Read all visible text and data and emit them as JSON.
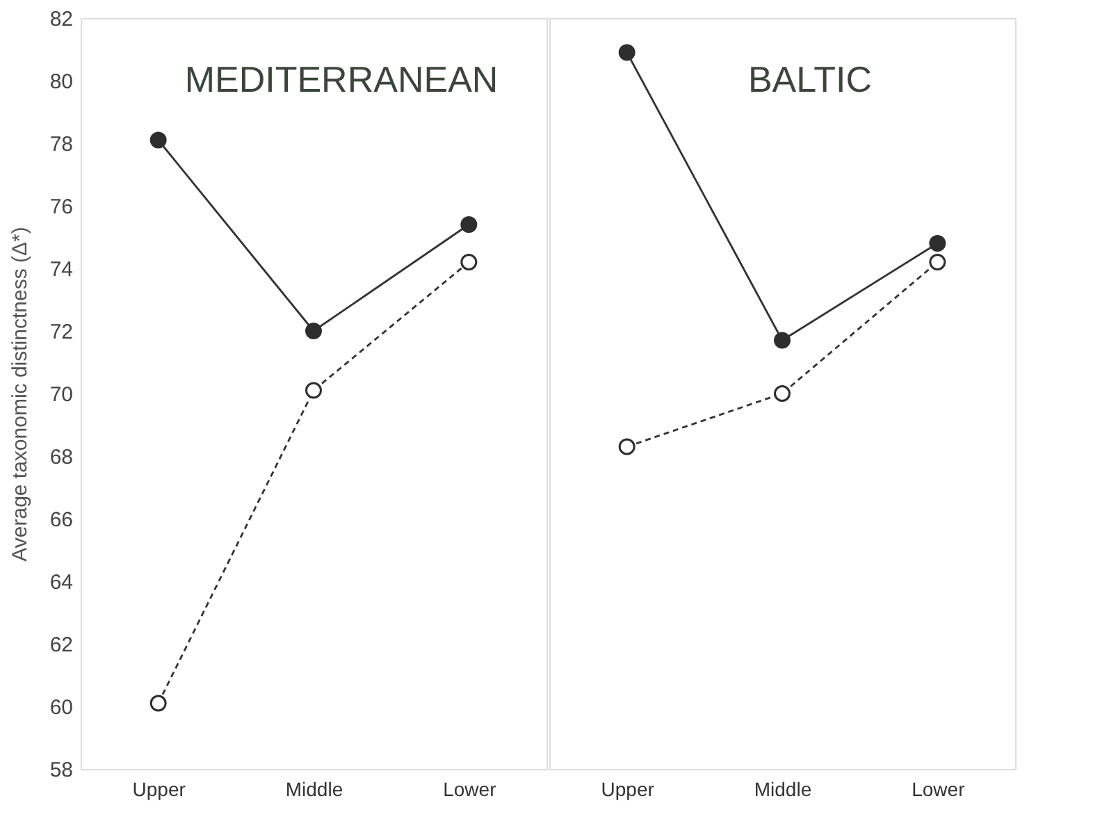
{
  "chart_data": [
    {
      "type": "line",
      "title": "MEDITERRANEAN",
      "ylabel": "Average taxonomic distinctness (Δ*)",
      "categories": [
        "Upper",
        "Middle",
        "Lower"
      ],
      "ylim": [
        58,
        82
      ],
      "yticks": [
        58,
        60,
        62,
        64,
        66,
        68,
        70,
        72,
        74,
        76,
        78,
        80,
        82
      ],
      "grid": false,
      "marker": "circle",
      "series": [
        {
          "color": "#2e2e2e",
          "line_style": "solid",
          "values": [
            78.1,
            72.0,
            75.4
          ]
        },
        {
          "color": "#ffffff",
          "line_style": "dashed",
          "values": [
            60.1,
            70.1,
            74.2
          ]
        }
      ]
    },
    {
      "type": "line",
      "title": "BALTIC",
      "categories": [
        "Upper",
        "Middle",
        "Lower"
      ],
      "ylim": [
        58,
        82
      ],
      "yticks": [
        58,
        60,
        62,
        64,
        66,
        68,
        70,
        72,
        74,
        76,
        78,
        80,
        82
      ],
      "grid": false,
      "marker": "circle",
      "tick_labels": "x",
      "series": [
        {
          "color": "#2e2e2e",
          "line_style": "solid",
          "values": [
            80.9,
            71.7,
            74.8
          ]
        },
        {
          "color": "#ffffff",
          "line_style": "dashed",
          "values": [
            68.3,
            70.0,
            74.2
          ]
        }
      ]
    }
  ]
}
